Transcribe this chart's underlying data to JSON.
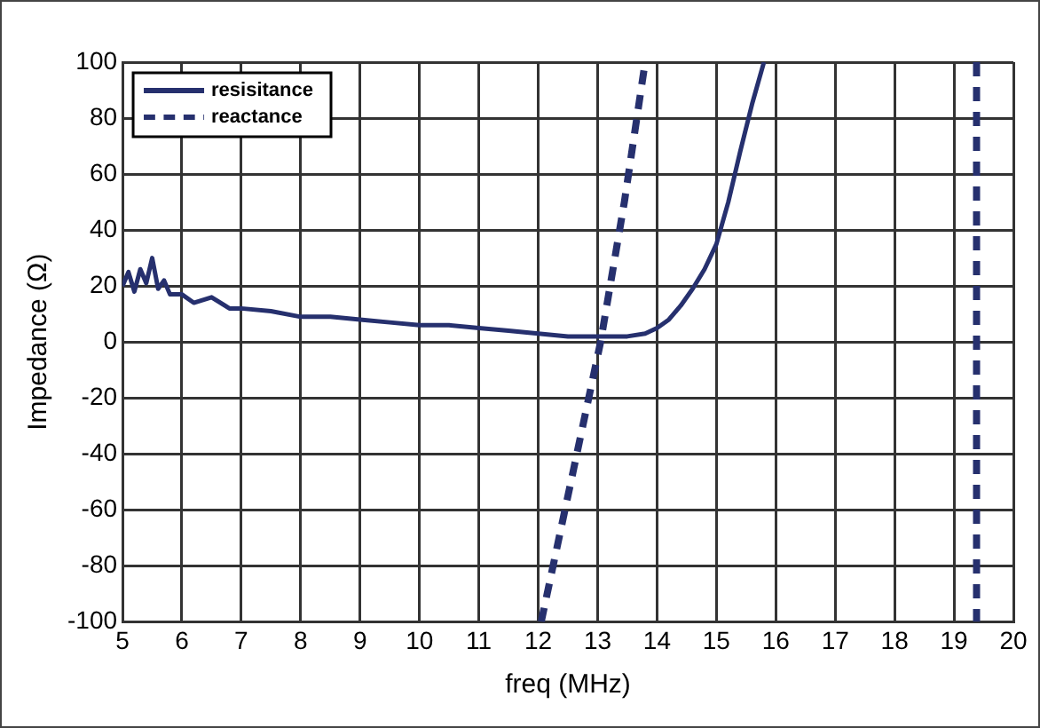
{
  "chart_data": {
    "type": "line",
    "xlabel": "freq (MHz)",
    "ylabel": "Impedance (Ω)",
    "xlim": [
      5,
      20
    ],
    "xticks": [
      5,
      6,
      7,
      8,
      9,
      10,
      11,
      12,
      13,
      14,
      15,
      16,
      17,
      18,
      19,
      20
    ],
    "ylim": [
      -100,
      100
    ],
    "yticks": [
      -100,
      -80,
      -60,
      -40,
      -20,
      0,
      20,
      40,
      60,
      80,
      100
    ],
    "grid": true,
    "legend": "top left",
    "marker": "none",
    "series": [
      {
        "name": "resisitance",
        "color": "#26306e",
        "line_style": "solid",
        "x": [
          5,
          5.1,
          5.2,
          5.3,
          5.4,
          5.5,
          5.6,
          5.7,
          5.8,
          6,
          6.2,
          6.5,
          6.8,
          7,
          7.5,
          8,
          8.5,
          9,
          9.5,
          10,
          10.5,
          11,
          11.5,
          12,
          12.5,
          13,
          13.5,
          13.8,
          14,
          14.2,
          14.4,
          14.6,
          14.8,
          15,
          15.2,
          15.4,
          15.6,
          15.8
        ],
        "values": [
          20,
          25,
          18,
          26,
          21,
          30,
          19,
          22,
          17,
          17,
          14,
          16,
          12,
          12,
          11,
          9,
          9,
          8,
          7,
          6,
          6,
          5,
          4,
          3,
          2,
          2,
          2,
          3,
          5,
          8,
          13,
          19,
          26,
          35,
          50,
          68,
          85,
          100
        ]
      },
      {
        "name": "reactance",
        "color": "#26306e",
        "line_style": "dashed",
        "x": [
          12.05,
          12.6,
          13.05,
          13.45,
          13.8,
          null,
          19.38,
          19.38
        ],
        "values": [
          -100,
          -45,
          0,
          50,
          100,
          null,
          100,
          -100
        ]
      }
    ]
  }
}
